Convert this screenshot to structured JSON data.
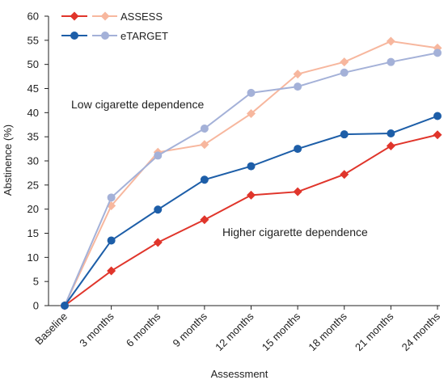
{
  "chart_data": {
    "type": "line",
    "xlabel": "Assessment",
    "ylabel": "Abstinence (%)",
    "ylim": [
      0,
      60
    ],
    "yticks": [
      0,
      5,
      10,
      15,
      20,
      25,
      30,
      35,
      40,
      45,
      50,
      55,
      60
    ],
    "grid": false,
    "legend_position": "top-left",
    "categories": [
      "Baseline",
      "3 months",
      "6 months",
      "9 months",
      "12 months",
      "15 months",
      "18 months",
      "21 months",
      "24 months"
    ],
    "series": [
      {
        "name": "ASSESS",
        "group": "Higher cigarette dependence",
        "color": "#e0352b",
        "marker": "diamond",
        "values": [
          0,
          7.2,
          13.1,
          17.8,
          22.9,
          23.6,
          27.2,
          33.1,
          35.4
        ]
      },
      {
        "name": "eTARGET",
        "group": "Higher cigarette dependence",
        "color": "#1d5ea8",
        "marker": "circle",
        "values": [
          0,
          13.5,
          19.9,
          26.1,
          28.9,
          32.5,
          35.5,
          35.7,
          39.3
        ]
      },
      {
        "name": "ASSESS",
        "group": "Low cigarette dependence",
        "color": "#f7b79e",
        "marker": "diamond",
        "values": [
          0,
          20.7,
          31.8,
          33.4,
          39.8,
          48.0,
          50.5,
          54.8,
          53.4
        ]
      },
      {
        "name": "eTARGET",
        "group": "Low cigarette dependence",
        "color": "#a4b1d8",
        "marker": "circle",
        "values": [
          0,
          22.4,
          31.1,
          36.7,
          44.1,
          45.4,
          48.3,
          50.5,
          52.4
        ]
      }
    ],
    "annotations": [
      {
        "text": "Low cigarette dependence"
      },
      {
        "text": "Higher cigarette dependence"
      }
    ]
  }
}
